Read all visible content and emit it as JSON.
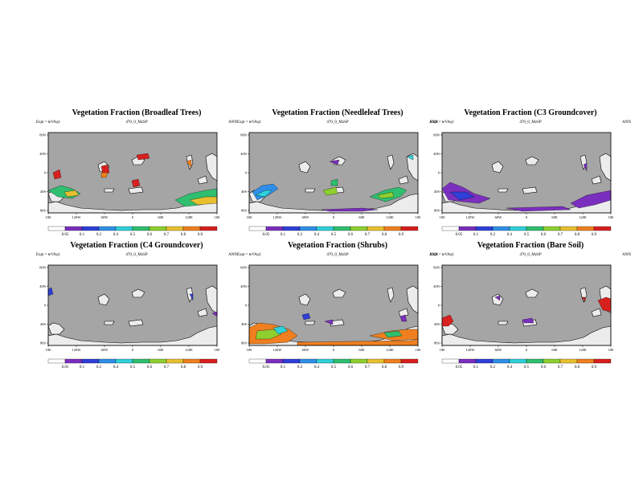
{
  "common": {
    "expt_label": "Expt = teVAq1",
    "run_label": "470_0_MzSP",
    "period_label": "ANN",
    "lat_ticks": [
      "80N",
      "40N",
      "0",
      "40S",
      "80S"
    ],
    "lon_ticks": [
      "180",
      "120W",
      "60W",
      "0",
      "60E",
      "120E",
      "180"
    ],
    "colorbar_ticks": [
      "0.05",
      "0.1",
      "0.2",
      "0.4",
      "0.5",
      "0.6",
      "0.7",
      "0.8",
      "0.9"
    ],
    "colorbar_colors": [
      "#ffffff",
      "#7b2fbe",
      "#2f3fd8",
      "#2f8fe8",
      "#2fd0d8",
      "#2fbf6f",
      "#8fcf2f",
      "#e8c02f",
      "#ef7f1f",
      "#d8201f"
    ],
    "ocean_color": "#a5a5a5",
    "land_color": "#ececec"
  },
  "panels": [
    {
      "title": "Vegetation Fraction (Broadleaf Trees)"
    },
    {
      "title": "Vegetation Fraction (Needleleaf Trees)"
    },
    {
      "title": "Vegetation Fraction (C3 Groundcover)"
    },
    {
      "title": "Vegetation Fraction (C4 Groundcover)"
    },
    {
      "title": "Vegetation Fraction (Shrubs)"
    },
    {
      "title": "Vegetation Fraction (Bare Soil)"
    }
  ]
}
